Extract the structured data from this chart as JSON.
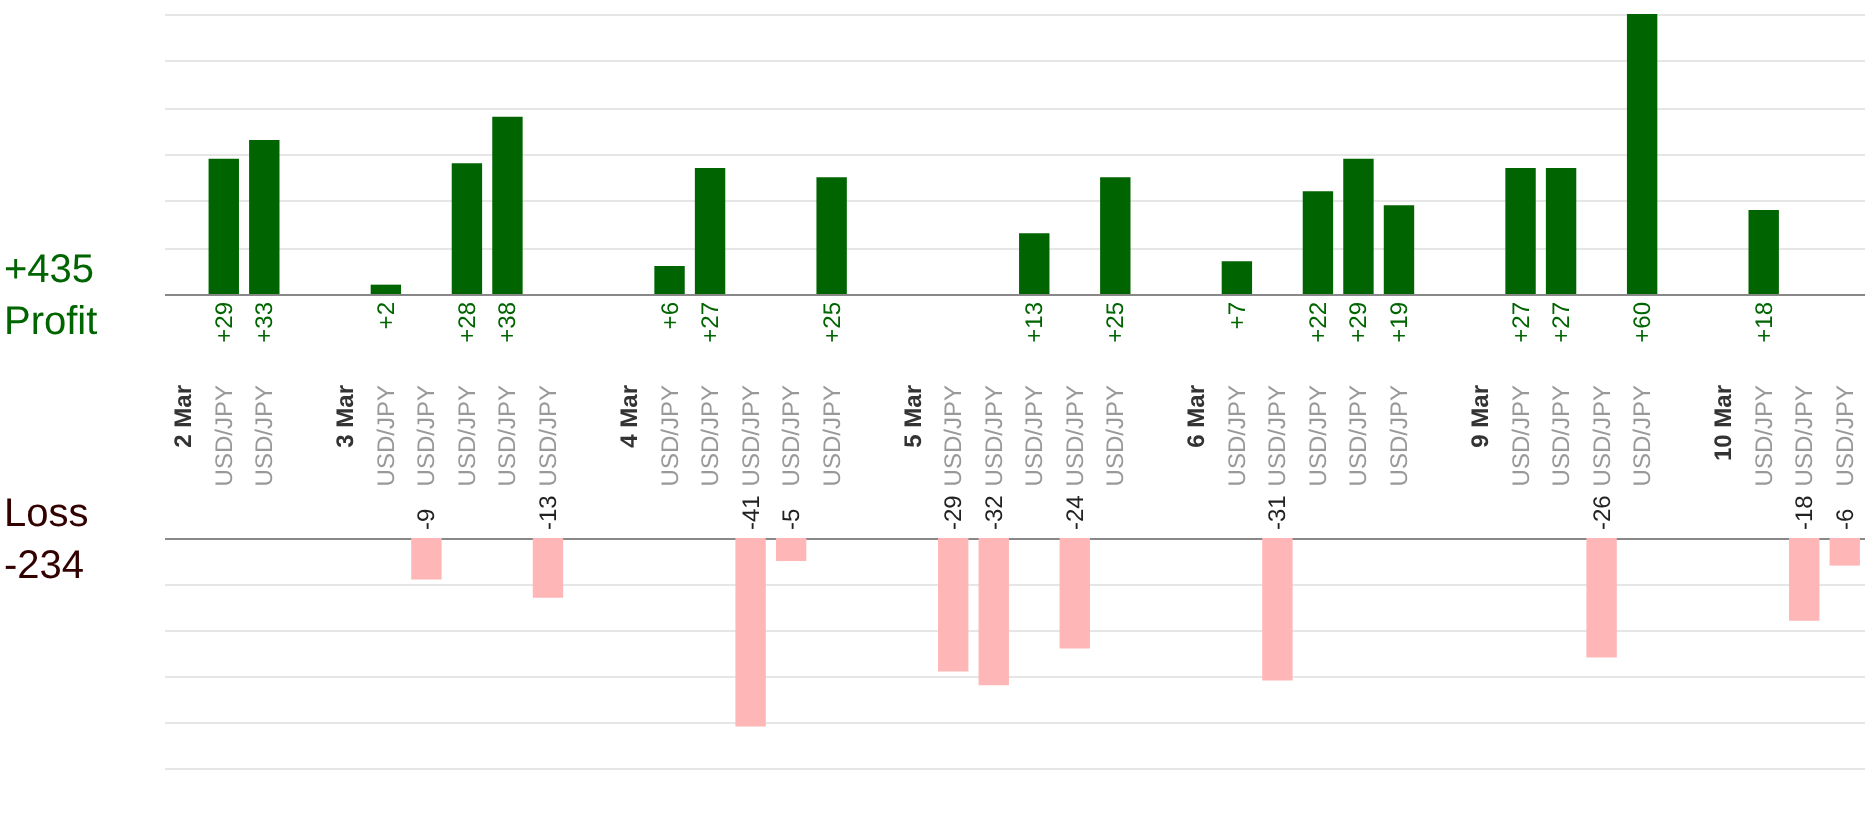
{
  "chart_data": [
    {
      "type": "bar",
      "categories": [
        "2 Mar",
        "USD/JPY",
        "USD/JPY",
        null,
        "3 Mar",
        "USD/JPY",
        "USD/JPY",
        "USD/JPY",
        "USD/JPY",
        "USD/JPY",
        null,
        "4 Mar",
        "USD/JPY",
        "USD/JPY",
        "USD/JPY",
        "USD/JPY",
        "USD/JPY",
        null,
        "5 Mar",
        "USD/JPY",
        "USD/JPY",
        "USD/JPY",
        "USD/JPY",
        "USD/JPY",
        null,
        "6 Mar",
        "USD/JPY",
        "USD/JPY",
        "USD/JPY",
        "USD/JPY",
        "USD/JPY",
        null,
        "9 Mar",
        "USD/JPY",
        "USD/JPY",
        "USD/JPY",
        "USD/JPY",
        null,
        "10 Mar",
        "USD/JPY",
        "USD/JPY",
        "USD/JPY"
      ],
      "values": [
        null,
        29,
        33,
        null,
        null,
        2,
        null,
        28,
        38,
        null,
        null,
        null,
        6,
        27,
        null,
        null,
        25,
        null,
        null,
        null,
        null,
        13,
        null,
        25,
        null,
        null,
        7,
        null,
        22,
        29,
        19,
        null,
        null,
        27,
        27,
        null,
        60,
        null,
        null,
        18,
        null,
        null
      ],
      "value_labels": [
        null,
        "+29",
        "+33",
        null,
        null,
        "+2",
        null,
        "+28",
        "+38",
        null,
        null,
        null,
        "+6",
        "+27",
        null,
        null,
        "+25",
        null,
        null,
        null,
        null,
        "+13",
        null,
        "+25",
        null,
        null,
        "+7",
        null,
        "+22",
        "+29",
        "+19",
        null,
        null,
        "+27",
        "+27",
        null,
        "+60",
        null,
        null,
        "+18",
        null,
        null
      ],
      "color": "#006400",
      "ylim": [
        0,
        60
      ],
      "yticks": [
        {
          "value": 10,
          "label": null
        },
        {
          "value": 20,
          "label": null
        },
        {
          "value": 30,
          "label": null
        },
        {
          "value": 40,
          "label": null
        },
        {
          "value": 50,
          "label": null
        },
        {
          "value": 60,
          "label": null
        }
      ],
      "grid": "y",
      "annotations": [
        "+435",
        "Profit"
      ]
    },
    {
      "type": "bar",
      "categories": [
        null,
        null,
        null,
        null,
        null,
        null,
        null,
        null,
        null,
        null,
        null,
        null,
        null,
        null,
        null,
        null,
        null,
        null,
        null,
        null,
        null,
        null,
        null,
        null,
        null,
        null,
        null,
        null,
        null,
        null,
        null,
        null,
        null,
        null,
        null,
        null,
        null,
        null,
        null,
        null,
        null,
        null
      ],
      "values": [
        null,
        null,
        null,
        null,
        null,
        null,
        -9,
        null,
        null,
        -13,
        null,
        null,
        null,
        null,
        -41,
        -5,
        null,
        null,
        null,
        -29,
        -32,
        null,
        -24,
        null,
        null,
        null,
        null,
        -31,
        null,
        null,
        null,
        null,
        null,
        null,
        null,
        -26,
        null,
        null,
        null,
        null,
        -18,
        -6
      ],
      "data_labels": true,
      "color": "#ffb6b6",
      "ylim": [
        -50,
        0
      ],
      "yticks": [
        {
          "value": -10,
          "label": null
        },
        {
          "value": -20,
          "label": null
        },
        {
          "value": -30,
          "label": null
        },
        {
          "value": -40,
          "label": null
        },
        {
          "value": -50,
          "label": null
        }
      ],
      "grid": "y",
      "tick_labels": false,
      "annotations": [
        "Loss",
        "-234"
      ]
    }
  ]
}
